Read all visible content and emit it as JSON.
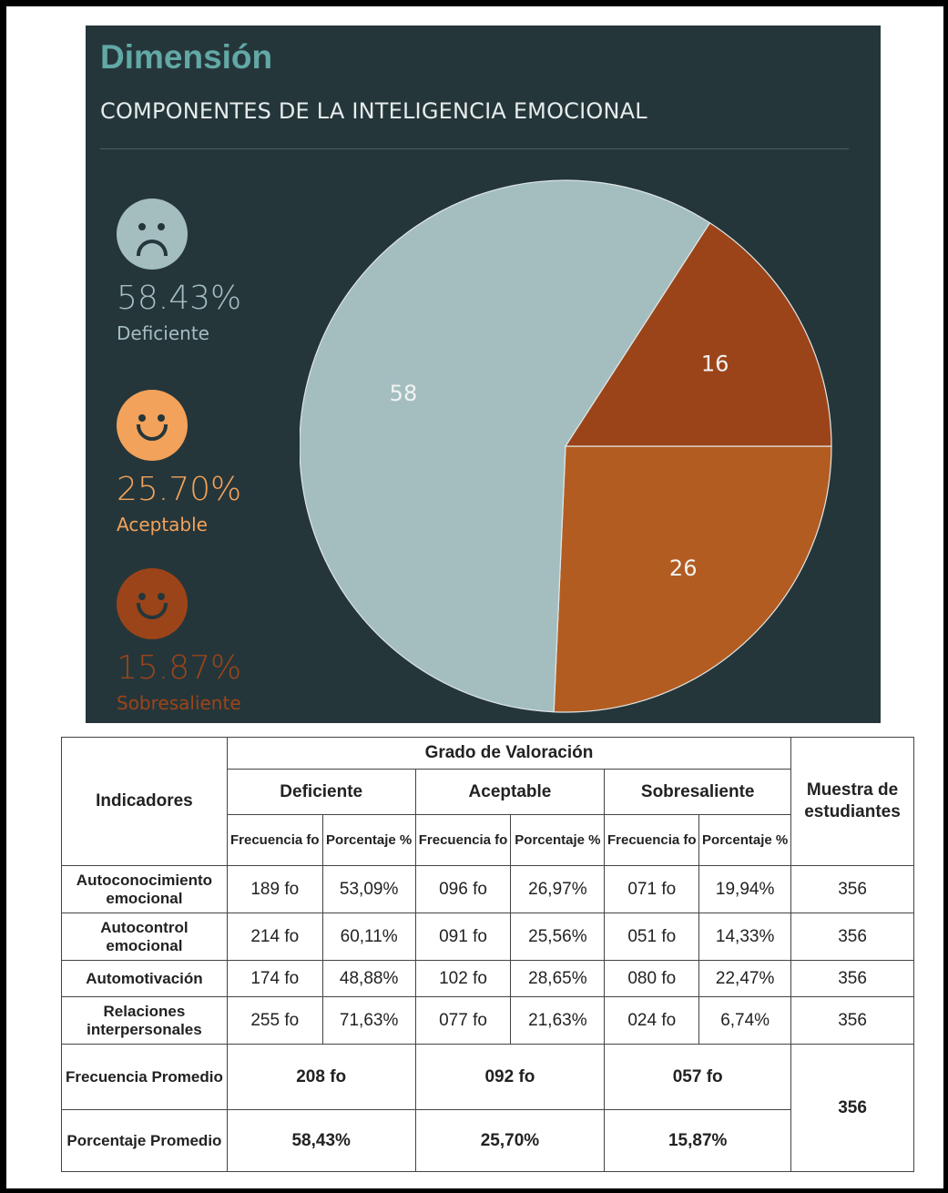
{
  "header": {
    "title": "Dimensión",
    "subtitle": "COMPONENTES DE LA INTELIGENCIA EMOCIONAL"
  },
  "legend": [
    {
      "percent": "58.43%",
      "label": "Deficiente",
      "face": "sad-face-icon",
      "color": "#a4bec0"
    },
    {
      "percent": "25.70%",
      "label": "Aceptable",
      "face": "smiley-face-icon",
      "color": "#f2a25a"
    },
    {
      "percent": "15.87%",
      "label": "Sobresaliente",
      "face": "wink-face-icon",
      "color": "#9c4419"
    }
  ],
  "chart_data": {
    "type": "pie",
    "title": "COMPONENTES DE LA INTELIGENCIA EMOCIONAL",
    "slices": [
      {
        "label": "58",
        "value": 58.43,
        "color": "#a4bec0"
      },
      {
        "label": "26",
        "value": 25.7,
        "color": "#b35c21"
      },
      {
        "label": "16",
        "value": 15.87,
        "color": "#9c4419"
      }
    ]
  },
  "table": {
    "header_indicadores": "Indicadores",
    "header_grado": "Grado de Valoración",
    "header_muestra": "Muestra de estudiantes",
    "groups": [
      "Deficiente",
      "Aceptable",
      "Sobresaliente"
    ],
    "sub_freq": "Frecuencia fo",
    "sub_pct": "Porcentaje %",
    "rows": [
      {
        "label": "Autoconocimiento emocional",
        "values": [
          "189 fo",
          "53,09%",
          "096 fo",
          "26,97%",
          "071 fo",
          "19,94%"
        ],
        "muestra": "356"
      },
      {
        "label": "Autocontrol emocional",
        "values": [
          "214 fo",
          "60,11%",
          "091 fo",
          "25,56%",
          "051 fo",
          "14,33%"
        ],
        "muestra": "356"
      },
      {
        "label": "Automotivación",
        "values": [
          "174 fo",
          "48,88%",
          "102 fo",
          "28,65%",
          "080 fo",
          "22,47%"
        ],
        "muestra": "356"
      },
      {
        "label": "Relaciones interpersonales",
        "values": [
          "255 fo",
          "71,63%",
          "077 fo",
          "21,63%",
          "024 fo",
          "6,74%"
        ],
        "muestra": "356"
      }
    ],
    "freq_prom_label": "Frecuencia Promedio",
    "freq_prom": [
      "208 fo",
      "092 fo",
      "057 fo"
    ],
    "pct_prom_label": "Porcentaje Promedio",
    "pct_prom": [
      "58,43%",
      "25,70%",
      "15,87%"
    ],
    "total_muestra": "356"
  }
}
